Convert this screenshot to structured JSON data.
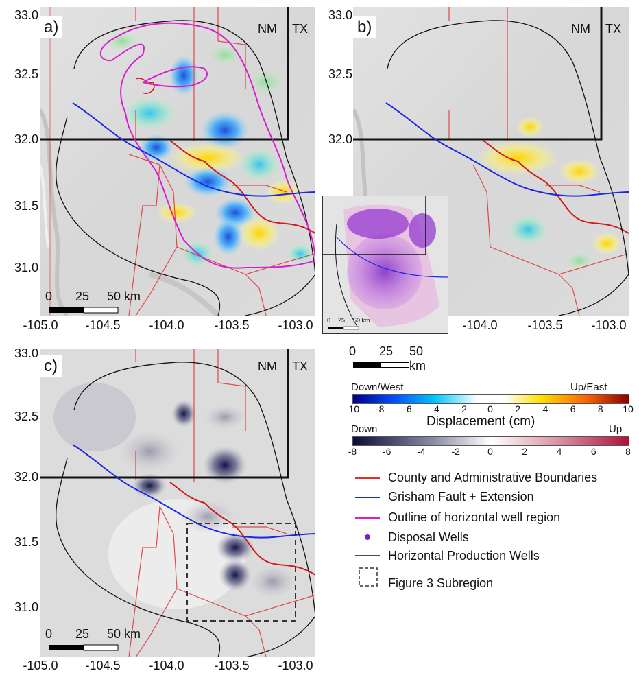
{
  "panels": {
    "a": {
      "tag": "a)"
    },
    "b": {
      "tag": "b)"
    },
    "c": {
      "tag": "c)"
    }
  },
  "states": {
    "nm": "NM",
    "tx": "TX"
  },
  "y_ticks": [
    "33.0",
    "32.5",
    "32.0",
    "31.5",
    "31.0"
  ],
  "x_ticks": [
    "-105.0",
    "-104.5",
    "-104.0",
    "-103.5",
    "-103.0"
  ],
  "x_ticks_b": [
    "-104.0",
    "-103.5",
    "-103.0"
  ],
  "scalebar": {
    "zero": "0",
    "mid": "25",
    "end": "50 km"
  },
  "inset_scalebar": {
    "zero": "0",
    "mid": "25",
    "end": "50 km"
  },
  "colorbar1": {
    "left_label": "Down/West",
    "right_label": "Up/East",
    "ticks": [
      "-10",
      "-8",
      "-6",
      "-4",
      "-2",
      "0",
      "2",
      "4",
      "6",
      "8",
      "10"
    ],
    "colors": [
      "#00008b",
      "#0050ff",
      "#00c8ff",
      "#ffffff",
      "#ffe000",
      "#ff6000",
      "#8b0000"
    ]
  },
  "colorbar_title": "Displacement (cm)",
  "colorbar2": {
    "left_label": "Down",
    "right_label": "Up",
    "ticks": [
      "-8",
      "-6",
      "-4",
      "-2",
      "0",
      "2",
      "4",
      "6",
      "8"
    ],
    "colors": [
      "#0a0a3c",
      "#9090a8",
      "#ffffff",
      "#d890a0",
      "#b0103a"
    ]
  },
  "legend": [
    {
      "label": "County and Administrative Boundaries",
      "color": "#e03030"
    },
    {
      "label": "Grisham Fault + Extension",
      "color": "#1a28e6"
    },
    {
      "label": "Outline of horizontal well region",
      "color": "#d81ecf"
    },
    {
      "label": "Disposal Wells",
      "color": "#7a1fc4"
    },
    {
      "label": "Horizontal Production Wells",
      "color": "#111111"
    },
    {
      "label": "Figure 3 Subregion",
      "color": "#333333"
    }
  ]
}
